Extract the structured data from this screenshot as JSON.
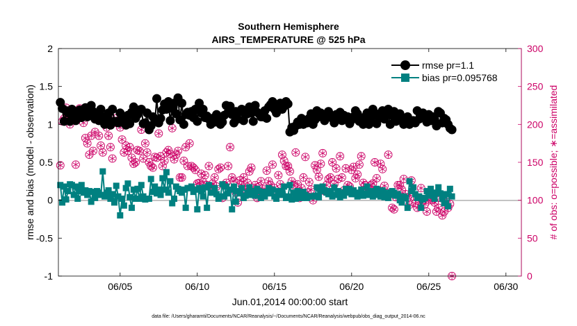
{
  "chart_data": {
    "type": "line",
    "title": [
      "Southern Hemisphere",
      "AIRS_TEMPERATURE @ 525 hPa"
    ],
    "xlabel": "Jun.01,2014 00:00:00 start",
    "ylabel": "rmse and bias (model - observation)",
    "y2label": "# of obs: o=possible; ∗=assimilated",
    "xlim": [
      1.0,
      31.0
    ],
    "ylim": [
      -1,
      2
    ],
    "y2lim": [
      0,
      300
    ],
    "x_ticks": [
      5,
      10,
      15,
      20,
      25,
      30
    ],
    "x_tick_labels": [
      "06/05",
      "06/10",
      "06/15",
      "06/20",
      "06/25",
      "06/30"
    ],
    "y_ticks": [
      -1,
      -0.5,
      0,
      0.5,
      1,
      1.5,
      2
    ],
    "y_tick_labels": [
      "-1",
      "-0.5",
      "0",
      "0.5",
      "1",
      "1.5",
      "2"
    ],
    "y2_ticks": [
      0,
      50,
      100,
      150,
      200,
      250,
      300
    ],
    "y2_tick_labels": [
      "0",
      "50",
      "100",
      "150",
      "200",
      "250",
      "300"
    ],
    "legend": {
      "position": "top-right",
      "entries": [
        "rmse pr=1.1",
        "bias pr=0.095768"
      ]
    },
    "footer": "data file: /Users/gharamti/Documents/NCAR/Reanalysis/~/Documents/NCAR/Reanalysis/webpub/obs_diag_output_2014-06.nc",
    "colors": {
      "rmse": "#000000",
      "bias": "#008080",
      "obs": "#cc0066",
      "zero_line": "#b0b0b0"
    },
    "start_day": 1.125,
    "step_days": 0.125,
    "series": [
      {
        "name": "rmse pr=1.1",
        "axis": "left",
        "values": [
          1.29,
          1.21,
          1.04,
          1.18,
          1.15,
          1.04,
          1.2,
          1.12,
          1.05,
          1.14,
          1.19,
          1.09,
          1.19,
          1.22,
          1.1,
          1.14,
          1.25,
          1.17,
          1.07,
          1.14,
          1.05,
          1.2,
          1.1,
          1.0,
          1.08,
          1.15,
          0.99,
          1.2,
          1.04,
          1.04,
          1.02,
          1.15,
          1.1,
          1.02,
          0.99,
          1.12,
          1.01,
          1.16,
          1.23,
          1.08,
          1.13,
          1.19,
          1.2,
          1.01,
          1.02,
          1.15,
          0.93,
          0.98,
          1.1,
          1.04,
          1.34,
          1.02,
          1.08,
          1.19,
          1.27,
          1.2,
          1.3,
          1.05,
          1.21,
          1.28,
          1.14,
          1.35,
          1.06,
          1.28,
          1.0,
          1.13,
          1.16,
          1.12,
          1.17,
          1.09,
          1.2,
          1.04,
          1.28,
          1.15,
          1.2,
          1.09,
          1.11,
          1.07,
          1.0,
          1.08,
          1.03,
          1.13,
          1.08,
          1.0,
          1.03,
          1.12,
          1.25,
          1.16,
          1.24,
          1.13,
          1.02,
          1.17,
          1.07,
          1.17,
          1.2,
          1.05,
          1.13,
          1.14,
          1.23,
          1.15,
          1.04,
          1.25,
          1.16,
          1.14,
          1.1,
          1.1,
          1.18,
          1.08,
          1.23,
          1.26,
          1.3,
          1.2,
          1.15,
          1.22,
          1.28,
          1.2,
          1.24,
          1.3,
          1.27,
          0.9,
          0.96,
          0.92,
          0.98,
          1.03,
          1.0,
          1.08,
          1.0,
          1.05,
          1.02,
          1.08,
          1.14,
          1.0,
          1.06,
          1.18,
          1.1,
          1.15,
          1.1,
          1.05,
          1.14,
          1.17,
          1.12,
          1.08,
          1.02,
          1.13,
          1.1,
          1.16,
          1.05,
          1.12,
          1.08,
          1.1,
          1.01,
          1.06,
          1.1,
          1.18,
          1.14,
          1.04,
          1.08,
          1.0,
          1.1,
          1.15,
          1.0,
          1.08,
          1.2,
          1.15,
          1.01,
          1.12,
          1.09,
          1.18,
          1.07,
          1.16,
          1.2,
          1.0,
          1.12,
          1.17,
          1.04,
          1.1,
          1.14,
          1.07,
          1.0,
          1.06,
          1.1,
          1.0,
          1.03,
          1.05,
          1.02,
          1.18,
          1.07,
          1.1,
          1.15,
          1.1,
          1.03,
          1.13,
          1.05,
          1.1,
          1.07,
          0.98,
          1.17,
          1.15,
          1.02,
          1.08,
          1.06,
          1.0,
          0.95,
          0.93
        ]
      },
      {
        "name": "bias pr=0.095768",
        "axis": "left",
        "values": [
          0.2,
          -0.03,
          0.18,
          0.01,
          0.12,
          0.21,
          0.2,
          0.07,
          0.18,
          0.02,
          0.12,
          0.2,
          0.1,
          0.13,
          0.07,
          0.12,
          -0.02,
          0.11,
          0.03,
          0.12,
          0.1,
          0.07,
          0.38,
          0.05,
          0.1,
          0.13,
          0.02,
          0.08,
          -0.03,
          0.19,
          0.05,
          -0.2,
          0.02,
          -0.07,
          0.16,
          0.22,
          0.04,
          -0.1,
          0.14,
          0.02,
          0.15,
          0.02,
          0.2,
          0.05,
          0.01,
          0.02,
          0.02,
          0.28,
          0.11,
          0.18,
          0.09,
          0.14,
          0.07,
          0.29,
          0.14,
          0.37,
          0.1,
          0.25,
          -0.04,
          0.02,
          0.18,
          0.15,
          0.12,
          0.1,
          0.14,
          -0.1,
          0.16,
          0.16,
          0.18,
          0.11,
          0.14,
          -0.12,
          0.16,
          0.12,
          0.05,
          0.17,
          -0.1,
          0.2,
          0.1,
          0.1,
          0.16,
          0.08,
          0.02,
          0.05,
          0.21,
          0.05,
          0.18,
          0.09,
          0.14,
          -0.12,
          0.18,
          -0.02,
          0.12,
          0.09,
          0.16,
          0.03,
          0.06,
          0.1,
          0.17,
          0.07,
          0.12,
          0.06,
          0.15,
          0.12,
          0.03,
          0.11,
          0.05,
          0.1,
          0.16,
          0.09,
          0.14,
          0.05,
          0.02,
          0.12,
          0.07,
          0.1,
          0.18,
          0.03,
          0.05,
          0.2,
          0.01,
          0.1,
          0.02,
          0.12,
          0.05,
          0.03,
          0.11,
          0.07,
          0.03,
          0.05,
          0.05,
          0.05,
          0.06,
          0.17,
          0.04,
          0.12,
          0.18,
          0.13,
          0.1,
          0.08,
          0.12,
          0.05,
          0.17,
          0.07,
          0.12,
          0.04,
          0.1,
          0.06,
          0.15,
          0.1,
          0.15,
          0.08,
          0.13,
          0.08,
          0.05,
          0.1,
          0.14,
          0.06,
          0.09,
          0.18,
          0.07,
          0.12,
          0.05,
          0.08,
          0.15,
          0.07,
          0.05,
          0.13,
          0.04,
          0.1,
          0.03,
          0.07,
          0.12,
          0.1,
          0.06,
          0.08,
          0.0,
          -0.03,
          0.05,
          0.03,
          -0.1,
          0.25,
          0.12,
          0.17,
          0.08,
          0.03,
          0.05,
          -0.1,
          0.01,
          0.03,
          0.12,
          0.06,
          0.15,
          0.08,
          0.02,
          0.1,
          0.17,
          0.09,
          0.02,
          -0.04,
          0.08,
          -0.08,
          0.15,
          0.05
        ]
      },
      {
        "name": "possible",
        "axis": "right",
        "values": [
          146,
          204,
          208,
          222,
          210,
          200,
          215,
          210,
          147,
          215,
          221,
          210,
          202,
          182,
          175,
          160,
          185,
          165,
          190,
          208,
          185,
          172,
          163,
          208,
          196,
          185,
          170,
          155,
          208,
          202,
          205,
          196,
          180,
          163,
          172,
          165,
          170,
          156,
          148,
          150,
          166,
          165,
          193,
          155,
          175,
          163,
          150,
          145,
          143,
          157,
          156,
          188,
          158,
          145,
          152,
          163,
          166,
          161,
          195,
          154,
          160,
          165,
          130,
          130,
          152,
          170,
          145,
          175,
          145,
          143,
          140,
          122,
          123,
          135,
          124,
          133,
          120,
          145,
          116,
          122,
          130,
          118,
          141,
          143,
          103,
          120,
          123,
          145,
          170,
          130,
          125,
          110,
          97,
          126,
          120,
          130,
          115,
          123,
          138,
          143,
          116,
          120,
          103,
          118,
          125,
          110,
          115,
          139,
          125,
          120,
          147,
          116,
          110,
          133,
          121,
          160,
          152,
          145,
          145,
          138,
          125,
          120,
          163,
          121,
          103,
          116,
          130,
          157,
          110,
          124,
          114,
          100,
          146,
          140,
          131,
          148,
          162,
          112,
          120,
          128,
          130,
          150,
          121,
          142,
          128,
          158,
          130,
          113,
          142,
          120,
          118,
          140,
          144,
          129,
          134,
          147,
          158,
          123,
          120,
          112,
          115,
          120,
          122,
          150,
          129,
          113,
          148,
          141,
          119,
          110,
          160,
          108,
          90,
          88,
          104,
          120,
          120,
          114,
          128,
          108,
          103,
          94,
          126,
          105,
          96,
          90,
          101,
          116,
          100,
          95,
          85,
          100,
          105,
          100,
          97,
          85,
          90,
          103,
          80,
          85,
          98,
          90,
          95,
          0
        ]
      },
      {
        "name": "assimilated",
        "axis": "right",
        "values": [
          146,
          204,
          208,
          222,
          210,
          200,
          215,
          210,
          147,
          215,
          221,
          210,
          202,
          182,
          175,
          160,
          185,
          165,
          190,
          208,
          185,
          172,
          163,
          208,
          196,
          185,
          170,
          155,
          208,
          202,
          205,
          196,
          180,
          163,
          172,
          165,
          170,
          156,
          148,
          150,
          166,
          165,
          193,
          155,
          175,
          163,
          150,
          145,
          143,
          157,
          156,
          188,
          158,
          145,
          152,
          163,
          166,
          161,
          195,
          154,
          160,
          165,
          130,
          130,
          152,
          170,
          145,
          175,
          145,
          143,
          140,
          122,
          123,
          135,
          124,
          133,
          120,
          145,
          116,
          122,
          130,
          118,
          141,
          143,
          103,
          120,
          123,
          145,
          170,
          130,
          125,
          110,
          97,
          126,
          120,
          130,
          115,
          123,
          138,
          143,
          116,
          120,
          103,
          118,
          125,
          110,
          115,
          139,
          125,
          120,
          147,
          116,
          110,
          133,
          121,
          160,
          152,
          145,
          145,
          138,
          125,
          120,
          163,
          121,
          103,
          116,
          130,
          157,
          110,
          124,
          114,
          100,
          146,
          140,
          131,
          148,
          162,
          112,
          120,
          128,
          130,
          150,
          121,
          142,
          128,
          158,
          130,
          113,
          142,
          120,
          118,
          140,
          144,
          129,
          134,
          147,
          158,
          123,
          120,
          112,
          115,
          120,
          122,
          150,
          129,
          113,
          148,
          141,
          119,
          110,
          160,
          108,
          90,
          88,
          104,
          120,
          120,
          114,
          128,
          108,
          103,
          94,
          126,
          105,
          96,
          90,
          101,
          116,
          100,
          95,
          85,
          100,
          105,
          100,
          97,
          85,
          90,
          103,
          80,
          85,
          98,
          90,
          95,
          0
        ]
      }
    ]
  }
}
